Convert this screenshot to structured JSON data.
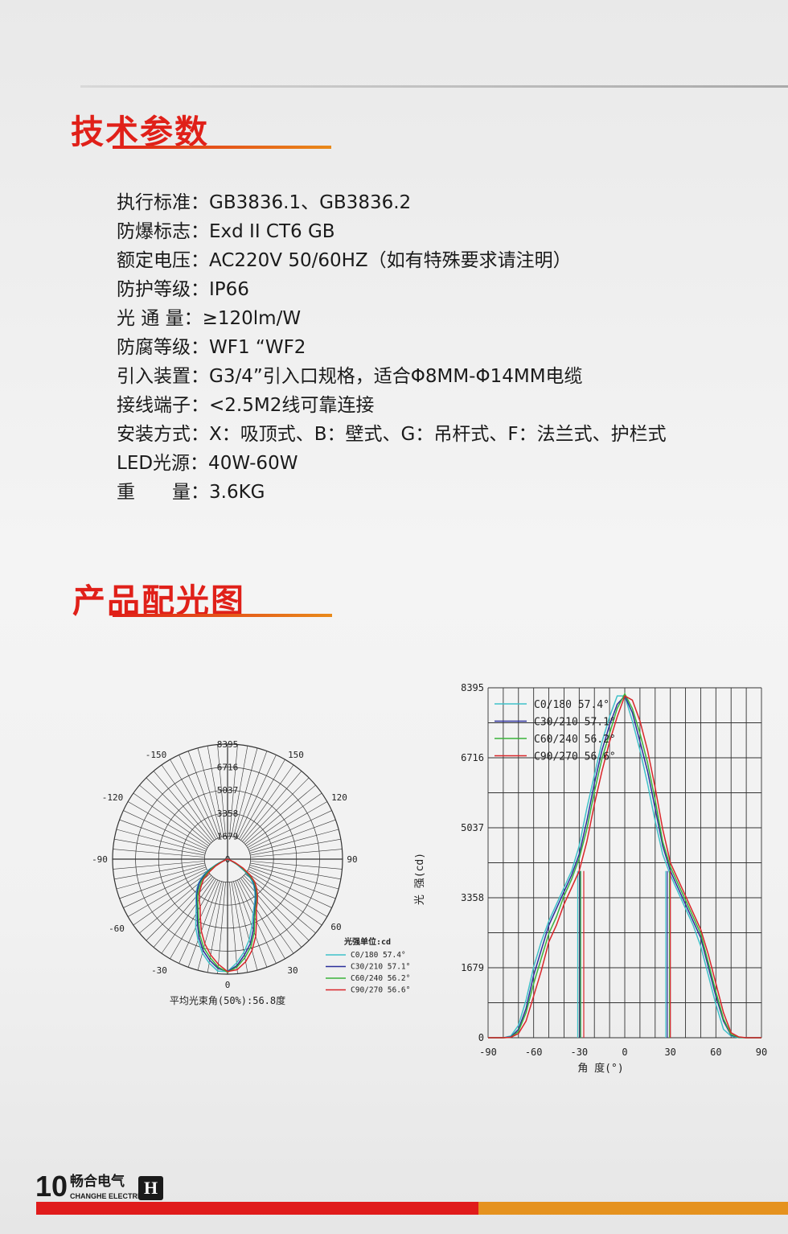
{
  "section1": {
    "title": "技术参数"
  },
  "specs": [
    "执行标准：GB3836.1、GB3836.2",
    "防爆标志：Exd II CT6 GB",
    "额定电压：AC220V 50/60HZ（如有特殊要求请注明）",
    "防护等级：IP66",
    "光 通 量：≥120lm/W",
    "防腐等级：WF1 “WF2",
    "引入装置：G3/4”引入口规格，适合Φ8MM-Φ14MM电缆",
    "接线端子：<2.5M2线可靠连接",
    "安装方式：X：吸顶式、B：壁式、G：吊杆式、F：法兰式、护栏式",
    "LED光源：40W-60W",
    "重　　量：3.6KG"
  ],
  "section2": {
    "title": "产品配光图"
  },
  "colors": {
    "C0/180": "#3fc1c9",
    "C30/210": "#2b2f9a",
    "C60/240": "#3bb33b",
    "C90/270": "#d9262a",
    "accent": "#e02019"
  },
  "chart_data": [
    {
      "type": "polar",
      "radial_ticks": [
        "0",
        "1679",
        "3358",
        "5037",
        "6716",
        "8395"
      ],
      "rmax": 8395,
      "angle_labels": [
        "0",
        "30",
        "60",
        "90",
        "120",
        "150",
        "-150",
        "-120",
        "-90",
        "-60",
        "-30"
      ],
      "unit_label": "光强单位:cd",
      "legend": [
        "C0/180  57.4°",
        "C30/210  57.1°",
        "C60/240  56.2°",
        "C90/270  56.6°"
      ],
      "caption": "平均光束角(50%):56.8度",
      "series_ref": "cartesian"
    },
    {
      "type": "line",
      "ylabel": "光 强(cd)",
      "xlabel": "角 度(°)",
      "xlim": [
        -90,
        90
      ],
      "ylim": [
        0,
        8395
      ],
      "xticks": [
        "-90",
        "-60",
        "-30",
        "0",
        "30",
        "60",
        "90"
      ],
      "yticks": [
        "0",
        "1679",
        "3358",
        "5037",
        "6716",
        "8395"
      ],
      "grid": true,
      "legend_position": "top-left",
      "x": [
        -90,
        -85,
        -80,
        -75,
        -70,
        -65,
        -60,
        -55,
        -50,
        -45,
        -40,
        -35,
        -30,
        -25,
        -20,
        -15,
        -10,
        -5,
        0,
        5,
        10,
        15,
        20,
        25,
        30,
        35,
        40,
        45,
        50,
        55,
        60,
        65,
        70,
        75,
        80,
        85,
        90
      ],
      "series": [
        {
          "name": "C0/180",
          "legend": "C0/180  57.4°",
          "beam_edges": [
            -31,
            27
          ],
          "values": [
            0,
            0,
            0,
            40,
            300,
            900,
            1700,
            2300,
            2800,
            3200,
            3600,
            4000,
            4600,
            5500,
            6300,
            7100,
            7700,
            8200,
            8200,
            7600,
            6900,
            6100,
            5200,
            4400,
            3900,
            3500,
            3100,
            2700,
            2200,
            1500,
            800,
            200,
            40,
            0,
            0,
            0,
            0
          ]
        },
        {
          "name": "C30/210",
          "legend": "C30/210  57.1°",
          "beam_edges": [
            -29.5,
            28
          ],
          "values": [
            0,
            0,
            0,
            20,
            200,
            700,
            1500,
            2100,
            2700,
            3100,
            3500,
            3900,
            4400,
            5200,
            6100,
            6900,
            7500,
            8000,
            8200,
            7800,
            7100,
            6400,
            5500,
            4600,
            4000,
            3600,
            3200,
            2800,
            2400,
            1700,
            1000,
            400,
            60,
            10,
            0,
            0,
            0
          ]
        },
        {
          "name": "C60/240",
          "legend": "C60/240  56.2°",
          "beam_edges": [
            -29,
            29.5
          ],
          "values": [
            0,
            0,
            0,
            10,
            150,
            600,
            1300,
            1900,
            2500,
            2900,
            3400,
            3800,
            4300,
            5000,
            5900,
            6700,
            7300,
            7900,
            8250,
            7900,
            7300,
            6600,
            5700,
            4700,
            4100,
            3700,
            3300,
            2900,
            2500,
            1800,
            1100,
            450,
            80,
            10,
            0,
            0,
            0
          ]
        },
        {
          "name": "C90/270",
          "legend": "C90/270  56.6°",
          "beam_edges": [
            -27,
            30
          ],
          "values": [
            0,
            0,
            0,
            10,
            100,
            400,
            1000,
            1600,
            2300,
            2700,
            3200,
            3600,
            4000,
            4700,
            5600,
            6400,
            7100,
            7700,
            8200,
            8100,
            7600,
            6900,
            6000,
            5000,
            4200,
            3800,
            3400,
            3000,
            2600,
            2000,
            1300,
            600,
            120,
            20,
            0,
            0,
            0
          ]
        }
      ]
    }
  ],
  "footer": {
    "page_number": "10",
    "brand_cn": "畅合电气",
    "brand_en": "CHANGHE ELECTRIC",
    "logo_letter": "H"
  }
}
